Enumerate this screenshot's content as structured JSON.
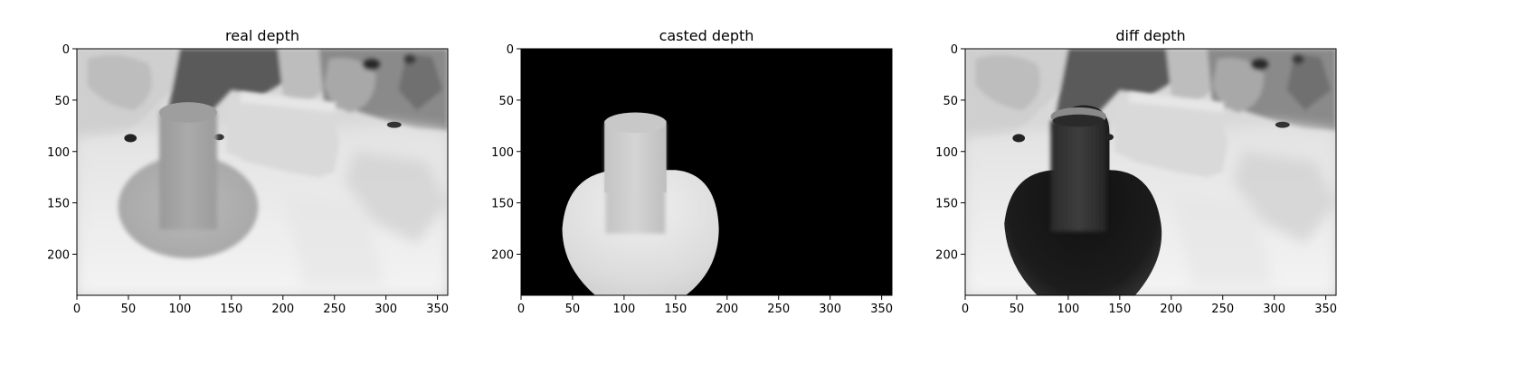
{
  "chart_data": [
    {
      "type": "heatmap",
      "title": "real depth",
      "colormap": "gray",
      "image_shape": [
        240,
        360
      ],
      "xlim": [
        0,
        360
      ],
      "ylim": [
        240,
        0
      ],
      "xticks": [
        0,
        50,
        100,
        150,
        200,
        250,
        300,
        350
      ],
      "yticks": [
        0,
        50,
        100,
        150,
        200
      ],
      "content": "real-depth"
    },
    {
      "type": "heatmap",
      "title": "casted depth",
      "colormap": "gray",
      "image_shape": [
        240,
        360
      ],
      "xlim": [
        0,
        360
      ],
      "ylim": [
        240,
        0
      ],
      "xticks": [
        0,
        50,
        100,
        150,
        200,
        250,
        300,
        350
      ],
      "yticks": [
        0,
        50,
        100,
        150,
        200
      ],
      "content": "casted-depth"
    },
    {
      "type": "heatmap",
      "title": "diff depth",
      "colormap": "gray",
      "image_shape": [
        240,
        360
      ],
      "xlim": [
        0,
        360
      ],
      "ylim": [
        240,
        0
      ],
      "xticks": [
        0,
        50,
        100,
        150,
        200,
        250,
        300,
        350
      ],
      "yticks": [
        0,
        50,
        100,
        150,
        200
      ],
      "content": "diff-depth"
    }
  ]
}
